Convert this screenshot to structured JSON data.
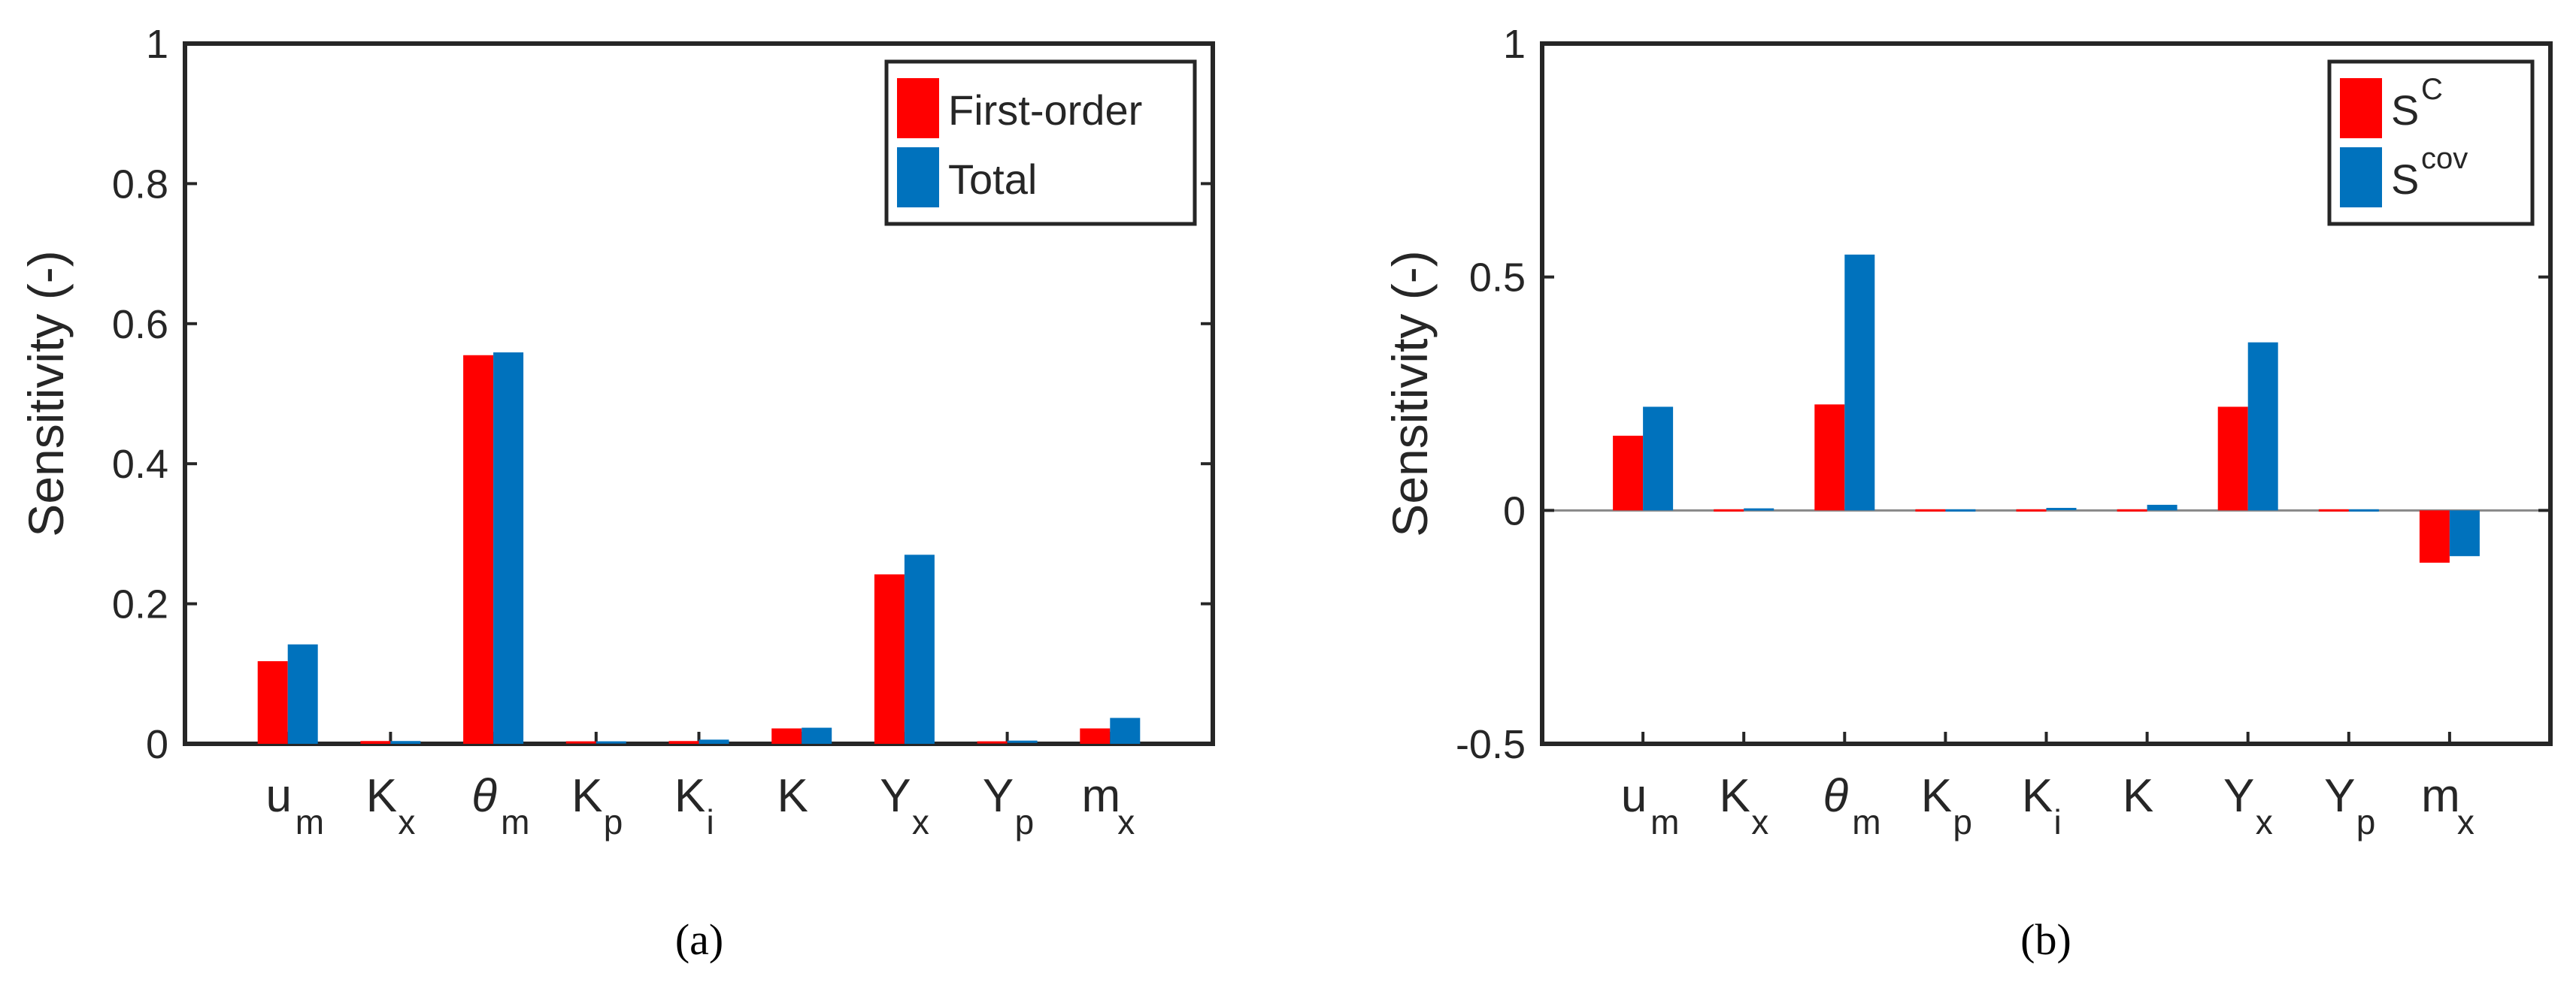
{
  "chart_data": [
    {
      "type": "bar",
      "caption": "(a)",
      "ylabel": "Sensitivity (-)",
      "ylim": [
        0,
        1
      ],
      "yticks": [
        "0",
        "0.2",
        "0.4",
        "0.6",
        "0.8",
        "1"
      ],
      "ytick_values": [
        0,
        0.2,
        0.4,
        0.6,
        0.8,
        1
      ],
      "categories": [
        {
          "base": "u",
          "sub": "m",
          "italic": false
        },
        {
          "base": "K",
          "sub": "x",
          "italic": false
        },
        {
          "base": "θ",
          "sub": "m",
          "italic": true
        },
        {
          "base": "K",
          "sub": "p",
          "italic": false
        },
        {
          "base": "K",
          "sub": "i",
          "italic": false
        },
        {
          "base": "K",
          "sub": "",
          "italic": false
        },
        {
          "base": "Y",
          "sub": "x",
          "italic": false
        },
        {
          "base": "Y",
          "sub": "p",
          "italic": false
        },
        {
          "base": "m",
          "sub": "x",
          "italic": false
        }
      ],
      "series": [
        {
          "name": "First-order",
          "color": "#ff0000",
          "values": [
            0.118,
            0.004,
            0.555,
            0.002,
            0.004,
            0.022,
            0.242,
            0.002,
            0.022
          ]
        },
        {
          "name": "Total",
          "color": "#0072bd",
          "values": [
            0.142,
            0.004,
            0.559,
            0.002,
            0.006,
            0.023,
            0.27,
            0.003,
            0.037
          ]
        }
      ],
      "legend": {
        "position": "top-right",
        "items": [
          {
            "base": "First-order",
            "sup": ""
          },
          {
            "base": "Total",
            "sup": ""
          }
        ]
      },
      "zero_line": false
    },
    {
      "type": "bar",
      "caption": "(b)",
      "ylabel": "Sensitivity (-)",
      "ylim": [
        -0.5,
        1
      ],
      "yticks": [
        "-0.5",
        "0",
        "0.5",
        "1"
      ],
      "ytick_values": [
        -0.5,
        0,
        0.5,
        1
      ],
      "categories": [
        {
          "base": "u",
          "sub": "m",
          "italic": false
        },
        {
          "base": "K",
          "sub": "x",
          "italic": false
        },
        {
          "base": "θ",
          "sub": "m",
          "italic": true
        },
        {
          "base": "K",
          "sub": "p",
          "italic": false
        },
        {
          "base": "K",
          "sub": "i",
          "italic": false
        },
        {
          "base": "K",
          "sub": "",
          "italic": false
        },
        {
          "base": "Y",
          "sub": "x",
          "italic": false
        },
        {
          "base": "Y",
          "sub": "p",
          "italic": false
        },
        {
          "base": "m",
          "sub": "x",
          "italic": false
        }
      ],
      "series": [
        {
          "name": "S^C",
          "color": "#ff0000",
          "values": [
            0.16,
            0.0,
            0.227,
            0.0,
            0.0,
            0.0,
            0.222,
            0.0,
            -0.112
          ]
        },
        {
          "name": "S^cov",
          "color": "#0072bd",
          "values": [
            0.222,
            0.002,
            0.548,
            0.0,
            0.003,
            0.012,
            0.36,
            0.0,
            -0.098
          ]
        }
      ],
      "legend": {
        "position": "top-right",
        "items": [
          {
            "base": "S",
            "sup": "C"
          },
          {
            "base": "S",
            "sup": "cov"
          }
        ]
      },
      "zero_line": true
    }
  ]
}
